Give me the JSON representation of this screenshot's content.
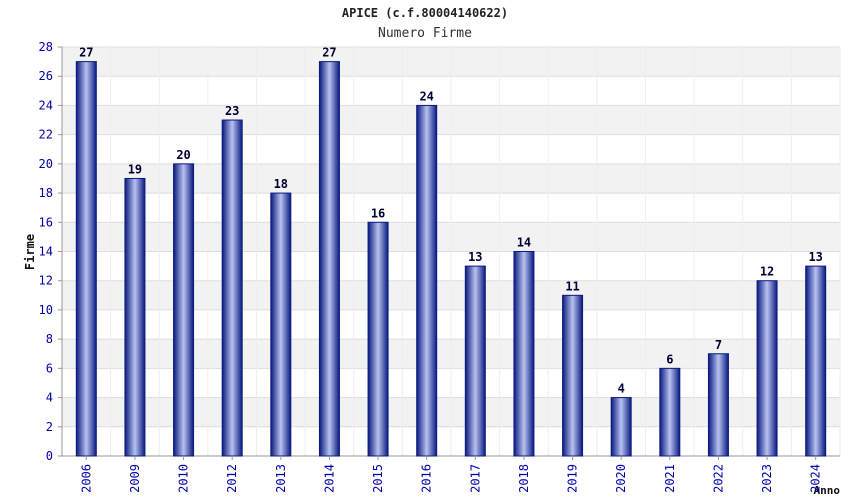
{
  "chart_data": {
    "type": "bar",
    "title": "APICE (c.f.80004140622)",
    "subtitle": "Numero Firme",
    "xlabel": "Anno",
    "ylabel": "Firme",
    "ylim": [
      0,
      28
    ],
    "ytick_step": 2,
    "grid": true,
    "categories": [
      "2006",
      "2009",
      "2010",
      "2012",
      "2013",
      "2014",
      "2015",
      "2016",
      "2017",
      "2018",
      "2019",
      "2020",
      "2021",
      "2022",
      "2023",
      "2024"
    ],
    "series": [
      {
        "values": [
          27,
          19,
          20,
          23,
          18,
          27,
          16,
          24,
          13,
          14,
          11,
          4,
          6,
          7,
          12,
          13
        ]
      }
    ],
    "colors": {
      "bar_dark": "#0a1a80",
      "bar_light": "#b8c2f0",
      "label": "#000033",
      "axis_text": "#0000aa",
      "band": "#f2f2f2",
      "grid": "#dddddd"
    }
  }
}
